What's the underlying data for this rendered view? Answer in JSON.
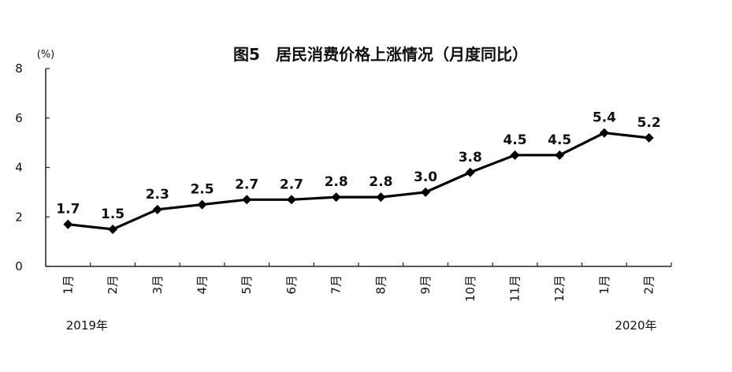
{
  "chart_data": {
    "type": "line",
    "title": "图5　居民消费价格上涨情况（月度同比）",
    "ylabel": "(%)",
    "xlabel": "",
    "ylim": [
      0,
      8
    ],
    "yticks": [
      0,
      2,
      4,
      6,
      8
    ],
    "grid": false,
    "categories": [
      "1月",
      "2月",
      "3月",
      "4月",
      "5月",
      "6月",
      "7月",
      "8月",
      "9月",
      "10月",
      "11月",
      "12月",
      "1月",
      "2月"
    ],
    "year_labels": [
      "2019年",
      "2020年"
    ],
    "series": [
      {
        "values": [
          1.7,
          1.5,
          2.3,
          2.5,
          2.7,
          2.7,
          2.8,
          2.8,
          3.0,
          3.8,
          4.5,
          4.5,
          5.4,
          5.2
        ],
        "data_labels": [
          "1.7",
          "1.5",
          "2.3",
          "2.5",
          "2.7",
          "2.7",
          "2.8",
          "2.8",
          "3.0",
          "3.8",
          "4.5",
          "4.5",
          "5.4",
          "5.2"
        ],
        "color": "#000000",
        "marker": "diamond"
      }
    ]
  }
}
